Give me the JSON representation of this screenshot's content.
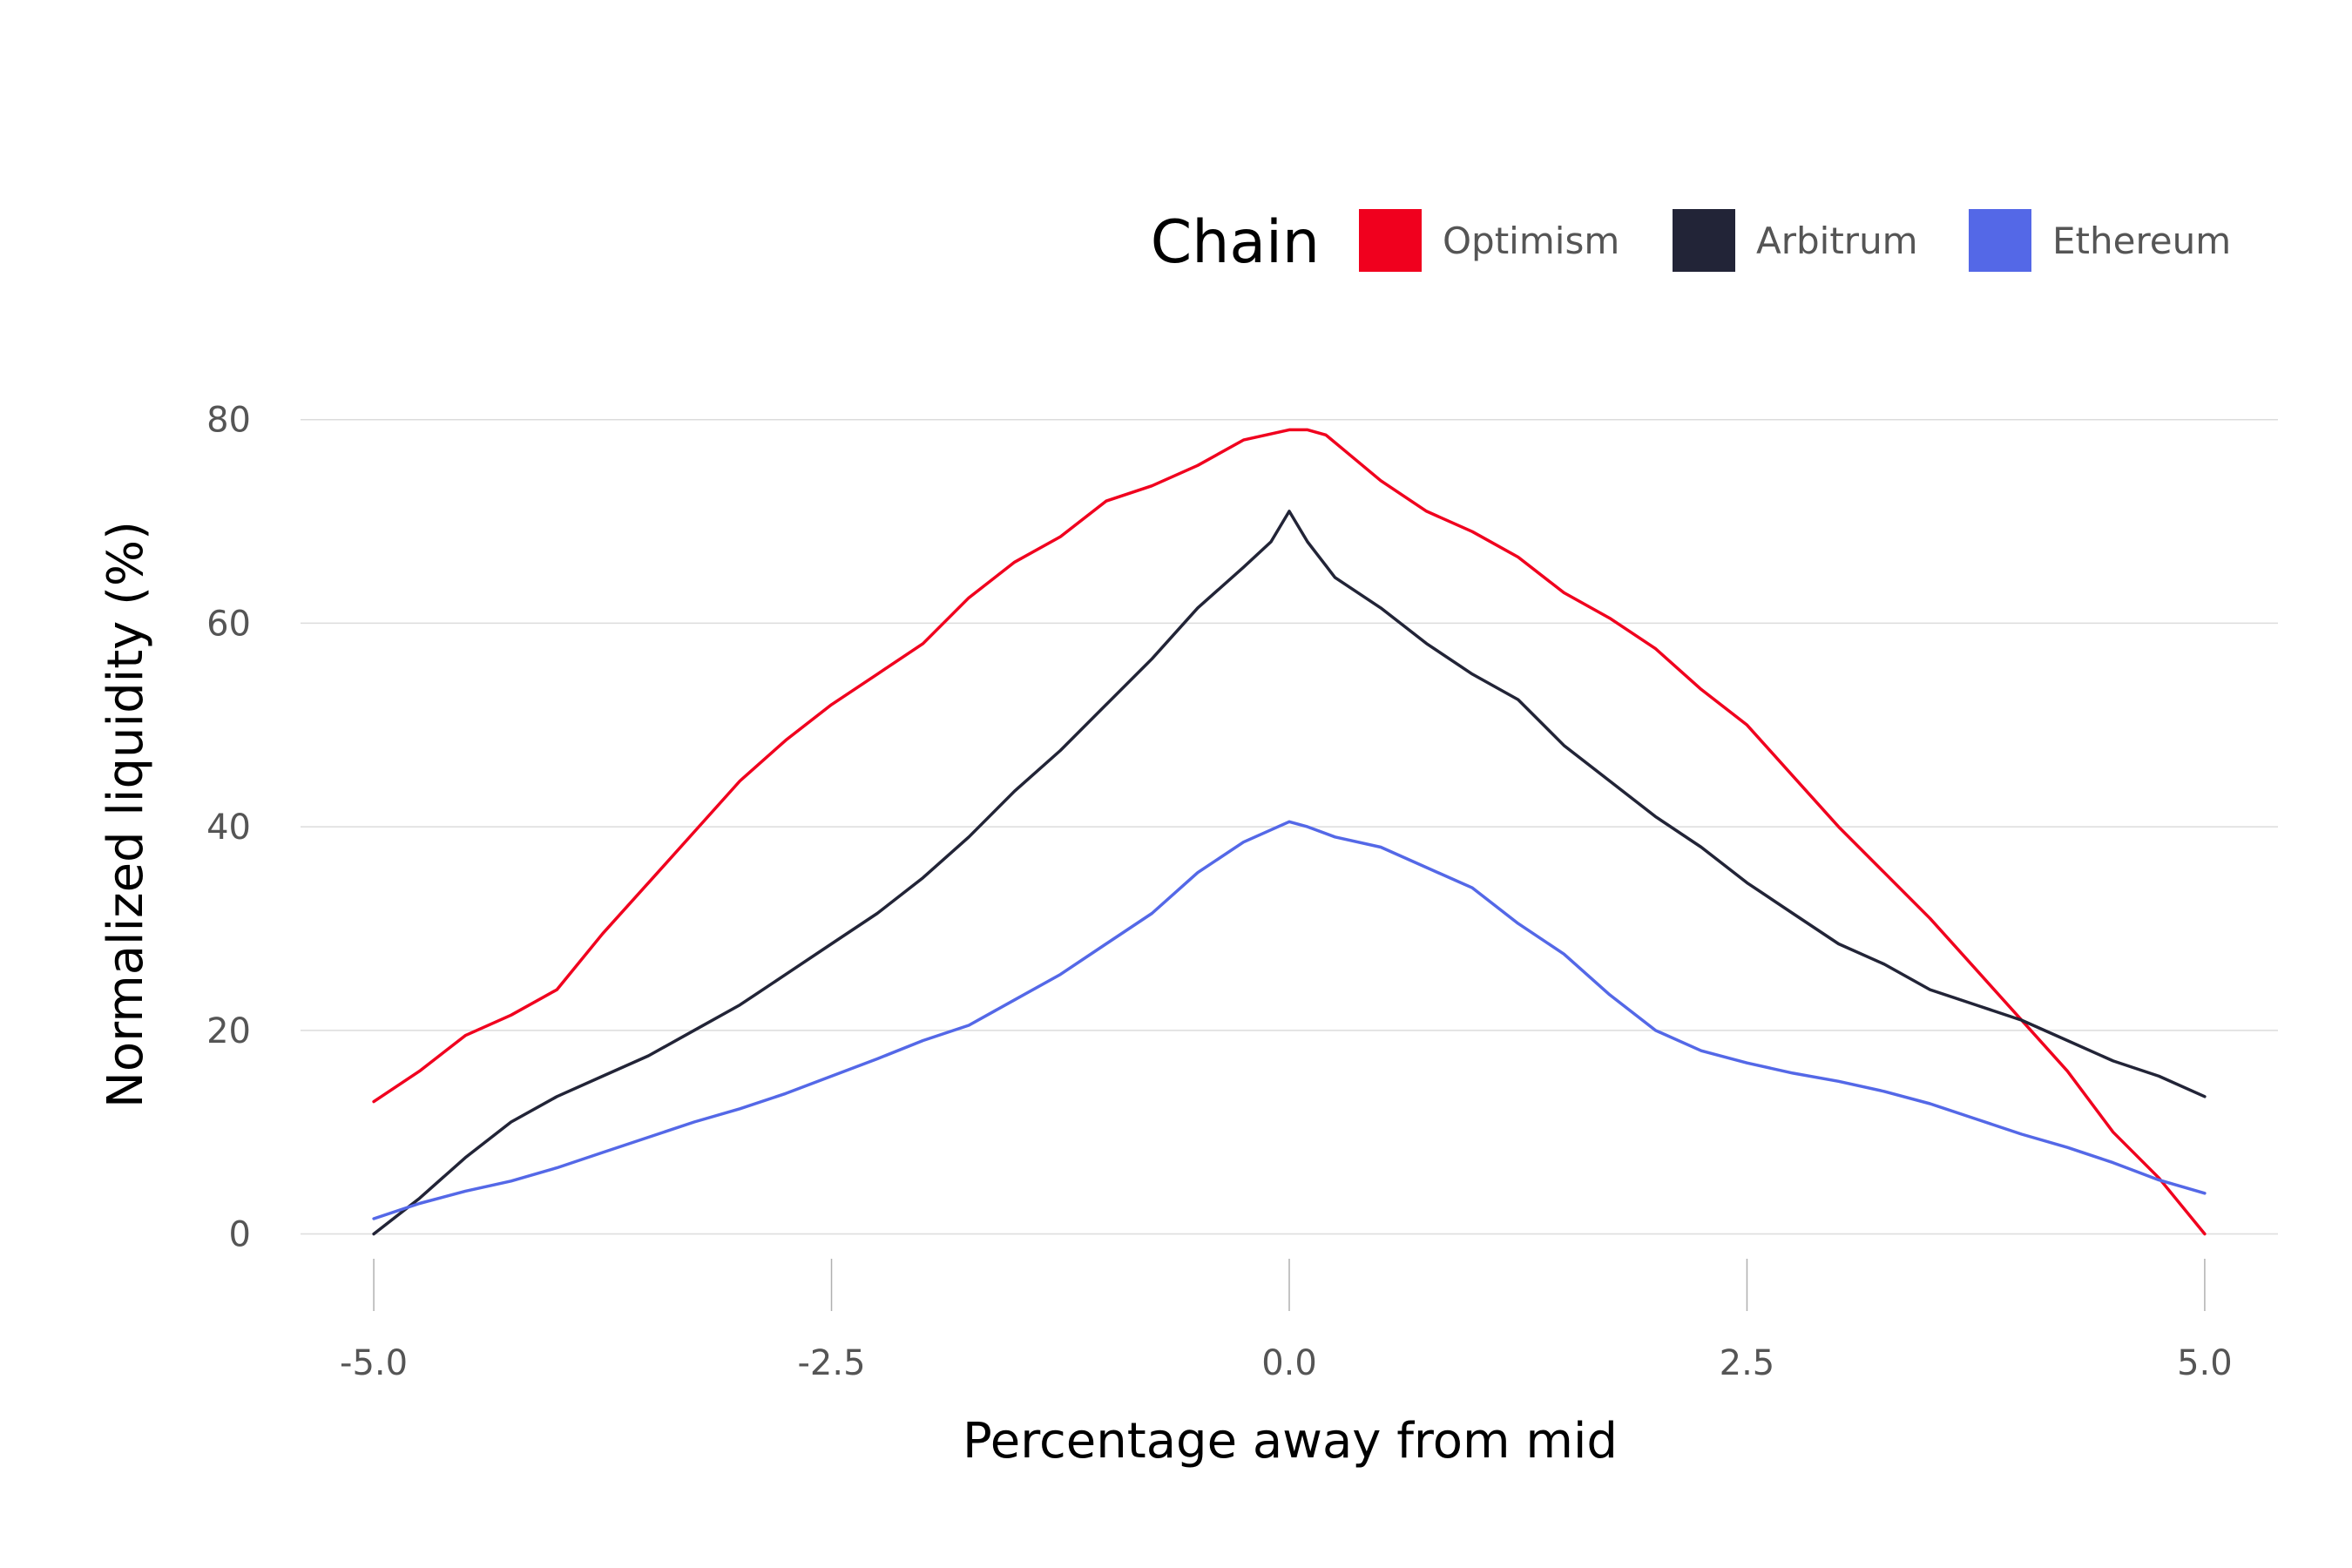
{
  "chart_data": {
    "type": "line",
    "title": "",
    "xlabel": "Percentage away from mid",
    "ylabel": "Normalized liquidity (%)",
    "xlim": [
      -5.4,
      5.4
    ],
    "ylim": [
      -8,
      84
    ],
    "xticks": [
      -5.0,
      -2.5,
      0.0,
      2.5,
      5.0
    ],
    "xtick_labels": [
      "-5.0",
      "-2.5",
      "0.0",
      "2.5",
      "5.0"
    ],
    "yticks": [
      0,
      20,
      40,
      60,
      80
    ],
    "ytick_labels": [
      "0",
      "20",
      "40",
      "60",
      "80"
    ],
    "grid": "horizontal",
    "legend": {
      "title": "Chain",
      "placement": "top-right"
    },
    "series": [
      {
        "name": "Optimism",
        "color": "#f0001e",
        "x": [
          -5.0,
          -4.75,
          -4.5,
          -4.25,
          -4.0,
          -3.75,
          -3.5,
          -3.25,
          -3.0,
          -2.75,
          -2.5,
          -2.25,
          -2.0,
          -1.75,
          -1.5,
          -1.25,
          -1.0,
          -0.75,
          -0.5,
          -0.25,
          0.0,
          0.1,
          0.2,
          0.3,
          0.5,
          0.75,
          1.0,
          1.25,
          1.5,
          1.75,
          2.0,
          2.25,
          2.5,
          2.75,
          3.0,
          3.25,
          3.5,
          3.75,
          4.0,
          4.25,
          4.5,
          4.75,
          5.0
        ],
        "y": [
          13,
          16,
          19.5,
          21.5,
          24,
          29.5,
          34.5,
          39.5,
          44.5,
          48.5,
          52,
          55,
          58,
          62.5,
          66,
          68.5,
          72,
          73.5,
          75.5,
          78,
          79,
          79,
          78.5,
          77,
          74,
          71,
          69,
          66.5,
          63,
          60.5,
          57.5,
          53.5,
          50,
          45,
          40,
          35.5,
          31,
          26,
          21,
          16,
          10,
          5.5,
          0
        ]
      },
      {
        "name": "Arbitrum",
        "color": "#222437",
        "x": [
          -5.0,
          -4.75,
          -4.5,
          -4.25,
          -4.0,
          -3.75,
          -3.5,
          -3.25,
          -3.0,
          -2.75,
          -2.5,
          -2.25,
          -2.0,
          -1.75,
          -1.5,
          -1.25,
          -1.0,
          -0.75,
          -0.5,
          -0.25,
          -0.1,
          0.0,
          0.1,
          0.25,
          0.5,
          0.75,
          1.0,
          1.25,
          1.5,
          1.75,
          2.0,
          2.25,
          2.5,
          2.75,
          3.0,
          3.25,
          3.5,
          3.75,
          4.0,
          4.25,
          4.5,
          4.75,
          5.0
        ],
        "y": [
          0,
          3.5,
          7.5,
          11,
          13.5,
          15.5,
          17.5,
          20,
          22.5,
          25.5,
          28.5,
          31.5,
          35,
          39,
          43.5,
          47.5,
          52,
          56.5,
          61.5,
          65.5,
          68,
          71,
          68,
          64.5,
          61.5,
          58,
          55,
          52.5,
          48,
          44.5,
          41,
          38,
          34.5,
          31.5,
          28.5,
          26.5,
          24,
          22.5,
          21,
          19,
          17,
          15.5,
          13.5
        ]
      },
      {
        "name": "Ethereum",
        "color": "#5468e7",
        "x": [
          -5.0,
          -4.75,
          -4.5,
          -4.25,
          -4.0,
          -3.75,
          -3.5,
          -3.25,
          -3.0,
          -2.75,
          -2.5,
          -2.25,
          -2.0,
          -1.75,
          -1.5,
          -1.25,
          -1.0,
          -0.75,
          -0.5,
          -0.25,
          0.0,
          0.1,
          0.25,
          0.5,
          0.75,
          1.0,
          1.25,
          1.5,
          1.75,
          2.0,
          2.25,
          2.5,
          2.75,
          3.0,
          3.25,
          3.5,
          3.75,
          4.0,
          4.25,
          4.5,
          4.75,
          5.0
        ],
        "y": [
          1.5,
          3,
          4.2,
          5.2,
          6.5,
          8,
          9.5,
          11,
          12.3,
          13.8,
          15.5,
          17.2,
          19,
          20.5,
          23,
          25.5,
          28.5,
          31.5,
          35.5,
          38.5,
          40.5,
          40,
          39,
          38,
          36,
          34,
          30.5,
          27.5,
          23.5,
          20,
          18,
          16.8,
          15.8,
          15,
          14,
          12.8,
          11.3,
          9.8,
          8.5,
          7,
          5.3,
          4
        ]
      }
    ]
  }
}
